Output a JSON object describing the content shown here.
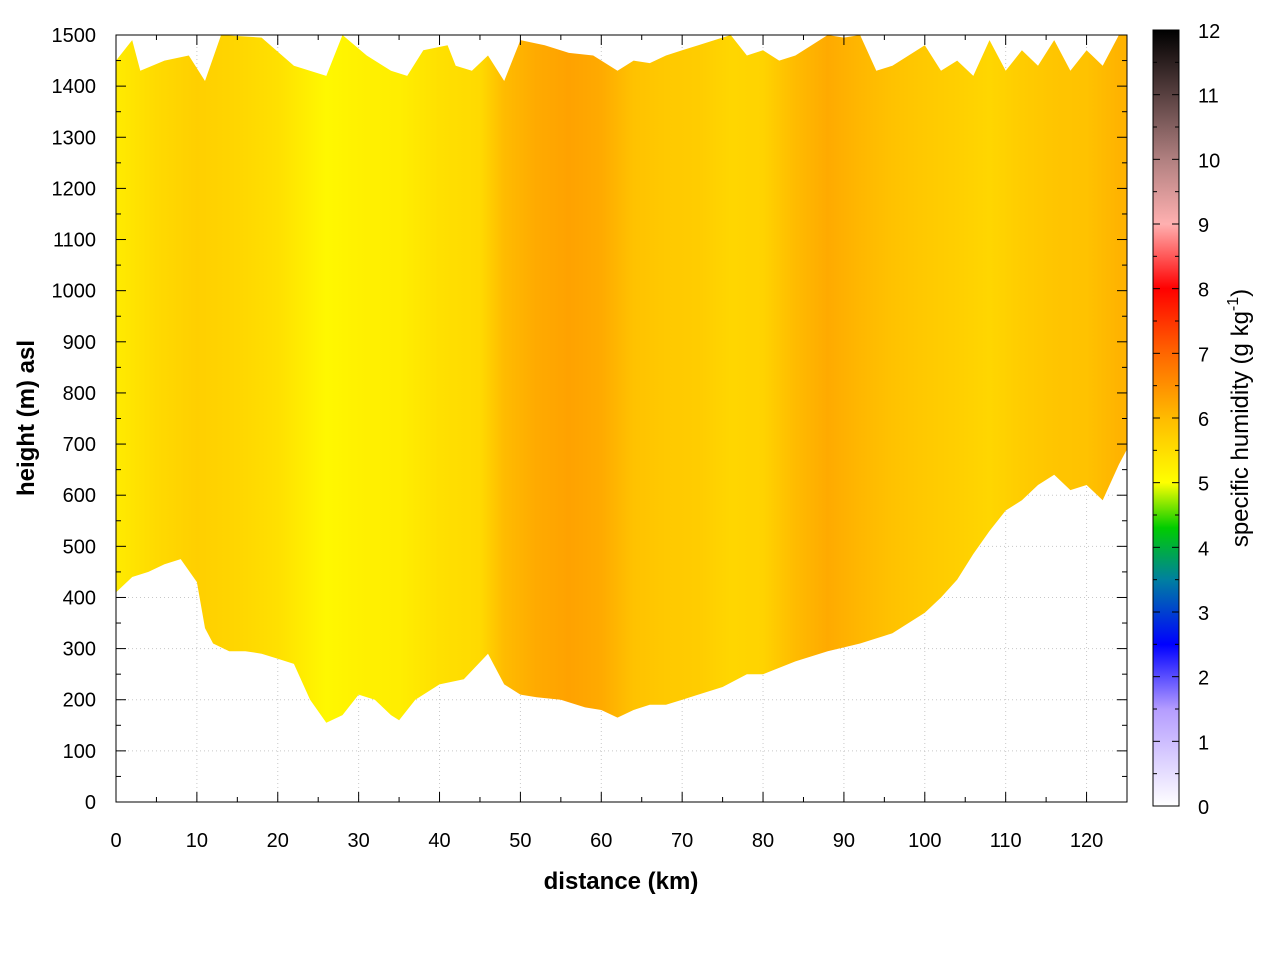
{
  "chart_data": {
    "type": "heatmap",
    "title": "",
    "xlabel": "distance (km)",
    "ylabel": "height (m) asl",
    "xlim": [
      0,
      125
    ],
    "ylim": [
      0,
      1500
    ],
    "x_ticks": [
      "0",
      "10",
      "20",
      "30",
      "40",
      "50",
      "60",
      "70",
      "80",
      "90",
      "100",
      "110",
      "120"
    ],
    "y_ticks": [
      "0",
      "100",
      "200",
      "300",
      "400",
      "500",
      "600",
      "700",
      "800",
      "900",
      "1000",
      "1100",
      "1200",
      "1300",
      "1400",
      "1500"
    ],
    "grid": true,
    "colorbar": {
      "label_main": "specific humidity (g kg",
      "label_sup": "-1",
      "label_end": ")",
      "range": [
        0,
        12
      ],
      "ticks": [
        "0",
        "1",
        "2",
        "3",
        "4",
        "5",
        "6",
        "7",
        "8",
        "9",
        "10",
        "11",
        "12"
      ],
      "stops": [
        {
          "v": 0,
          "color": "#ffffff"
        },
        {
          "v": 1.5,
          "color": "#b49cff"
        },
        {
          "v": 2.5,
          "color": "#0000ff"
        },
        {
          "v": 3.5,
          "color": "#0080a0"
        },
        {
          "v": 4.3,
          "color": "#00cc00"
        },
        {
          "v": 5.0,
          "color": "#ffff00"
        },
        {
          "v": 6.0,
          "color": "#ffbb00"
        },
        {
          "v": 7.0,
          "color": "#ff6600"
        },
        {
          "v": 8.0,
          "color": "#ff0000"
        },
        {
          "v": 9.0,
          "color": "#ffb0b0"
        },
        {
          "v": 10.0,
          "color": "#b08080"
        },
        {
          "v": 12.0,
          "color": "#000000"
        }
      ]
    },
    "humidity_profile": {
      "x": [
        0,
        5,
        10,
        15,
        20,
        26,
        30,
        35,
        40,
        45,
        48,
        52,
        56,
        60,
        64,
        68,
        72,
        76,
        80,
        84,
        88,
        92,
        96,
        100,
        104,
        108,
        112,
        116,
        120,
        124
      ],
      "q": [
        5.3,
        5.55,
        5.7,
        5.6,
        5.45,
        5.1,
        5.2,
        5.25,
        5.45,
        5.55,
        6.0,
        6.2,
        6.3,
        6.2,
        5.9,
        5.8,
        5.75,
        5.6,
        5.65,
        6.0,
        6.2,
        6.05,
        5.9,
        5.8,
        5.7,
        5.6,
        5.75,
        5.85,
        5.9,
        6.1
      ]
    },
    "terrain_height": {
      "x": [
        0,
        2,
        4,
        6,
        8,
        10,
        11,
        12,
        14,
        16,
        18,
        20,
        22,
        24,
        26,
        28,
        30,
        32,
        34,
        35,
        37,
        40,
        43,
        46,
        48,
        50,
        52,
        55,
        58,
        60,
        62,
        64,
        66,
        68,
        70,
        72,
        75,
        78,
        80,
        84,
        88,
        92,
        96,
        100,
        102,
        104,
        106,
        108,
        110,
        112,
        114,
        116,
        118,
        120,
        122,
        124,
        125
      ],
      "z": [
        410,
        440,
        450,
        465,
        475,
        430,
        340,
        310,
        295,
        295,
        290,
        280,
        270,
        200,
        155,
        170,
        210,
        200,
        170,
        160,
        200,
        230,
        240,
        290,
        230,
        210,
        205,
        200,
        185,
        180,
        165,
        180,
        190,
        190,
        200,
        210,
        225,
        250,
        250,
        275,
        295,
        310,
        330,
        370,
        400,
        435,
        485,
        530,
        570,
        590,
        620,
        640,
        610,
        620,
        590,
        660,
        690
      ]
    },
    "top_edge": {
      "x": [
        0,
        2,
        3,
        6,
        9,
        11,
        13,
        18,
        22,
        26,
        28,
        31,
        34,
        36,
        38,
        41,
        42,
        44,
        46,
        48,
        50,
        53,
        56,
        59,
        62,
        64,
        66,
        68,
        70,
        72,
        74,
        76,
        78,
        80,
        82,
        84,
        86,
        88,
        90,
        92,
        94,
        96,
        98,
        100,
        102,
        104,
        106,
        108,
        110,
        112,
        114,
        116,
        118,
        120,
        122,
        124
      ],
      "z": [
        1450,
        1490,
        1430,
        1450,
        1460,
        1410,
        1500,
        1495,
        1440,
        1420,
        1500,
        1460,
        1430,
        1420,
        1470,
        1480,
        1440,
        1430,
        1460,
        1410,
        1490,
        1480,
        1465,
        1460,
        1430,
        1450,
        1445,
        1460,
        1470,
        1480,
        1490,
        1500,
        1460,
        1470,
        1450,
        1460,
        1480,
        1500,
        1495,
        1500,
        1430,
        1440,
        1460,
        1480,
        1430,
        1450,
        1420,
        1490,
        1430,
        1470,
        1440,
        1490,
        1430,
        1470,
        1440,
        1500
      ]
    }
  }
}
